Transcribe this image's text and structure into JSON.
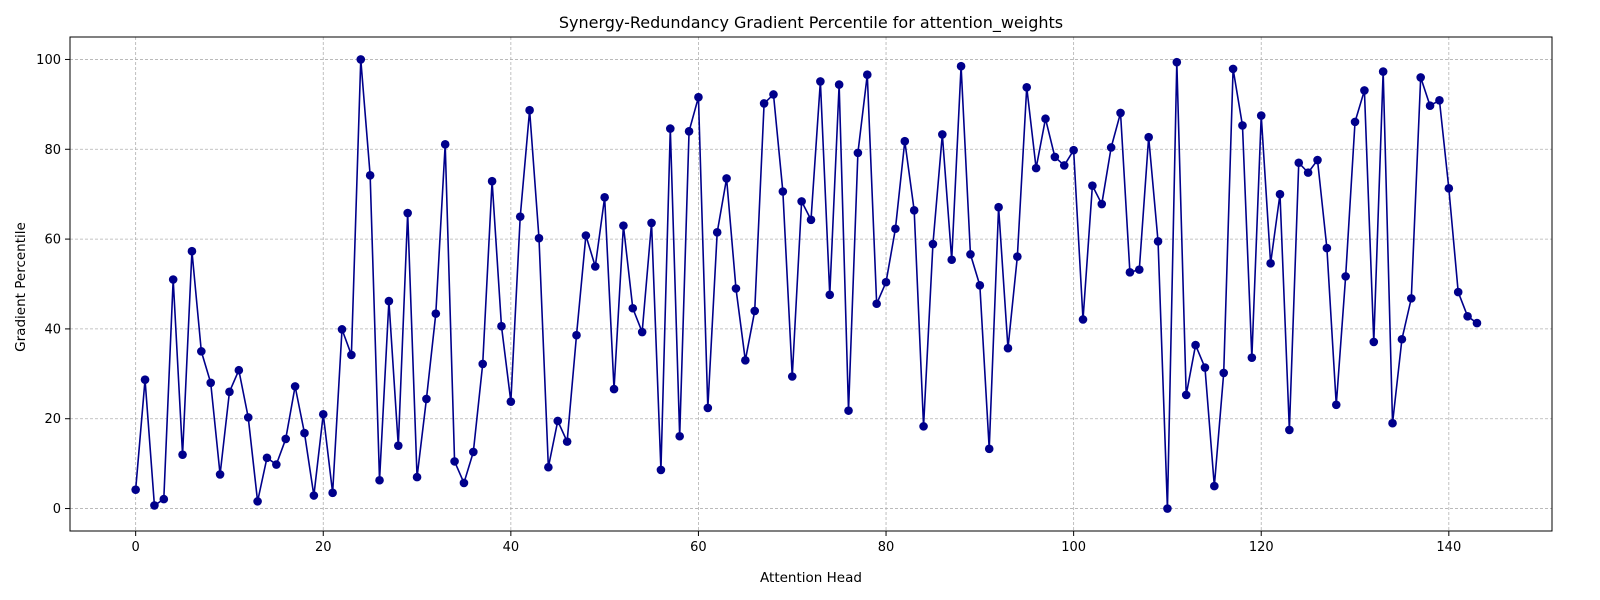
{
  "chart_data": {
    "type": "line",
    "title": "Synergy-Redundancy Gradient Percentile for attention_weights",
    "xlabel": "Attention Head",
    "ylabel": "Gradient Percentile",
    "xlim": [
      -7,
      151
    ],
    "ylim": [
      -5,
      105
    ],
    "xticks": [
      0,
      20,
      40,
      60,
      80,
      100,
      120,
      140
    ],
    "yticks": [
      0,
      20,
      40,
      60,
      80,
      100
    ],
    "grid": true,
    "marker": "circle",
    "series": [
      {
        "color": "#00008b",
        "x": [
          0,
          1,
          2,
          3,
          4,
          5,
          6,
          7,
          8,
          9,
          10,
          11,
          12,
          13,
          14,
          15,
          16,
          17,
          18,
          19,
          20,
          21,
          22,
          23,
          24,
          25,
          26,
          27,
          28,
          29,
          30,
          31,
          32,
          33,
          34,
          35,
          36,
          37,
          38,
          39,
          40,
          41,
          42,
          43,
          44,
          45,
          46,
          47,
          48,
          49,
          50,
          51,
          52,
          53,
          54,
          55,
          56,
          57,
          58,
          59,
          60,
          61,
          62,
          63,
          64,
          65,
          66,
          67,
          68,
          69,
          70,
          71,
          72,
          73,
          74,
          75,
          76,
          77,
          78,
          79,
          80,
          81,
          82,
          83,
          84,
          85,
          86,
          87,
          88,
          89,
          90,
          91,
          92,
          93,
          94,
          95,
          96,
          97,
          98,
          99,
          100,
          101,
          102,
          103,
          104,
          105,
          106,
          107,
          108,
          109,
          110,
          111,
          112,
          113,
          114,
          115,
          116,
          117,
          118,
          119,
          120,
          121,
          122,
          123,
          124,
          125,
          126,
          127,
          128,
          129,
          130,
          131,
          132,
          133,
          134,
          135,
          136,
          137,
          138,
          139,
          140,
          141,
          142,
          143
        ],
        "values": [
          4.2,
          28.7,
          0.7,
          2.1,
          51,
          12,
          57.3,
          35,
          28,
          7.6,
          26,
          30.8,
          20.3,
          1.6,
          11.3,
          9.8,
          15.5,
          27.2,
          16.8,
          2.9,
          21,
          3.5,
          39.9,
          34.2,
          100,
          74.2,
          6.3,
          46.2,
          14,
          65.8,
          7,
          24.4,
          43.4,
          81.1,
          10.5,
          5.7,
          12.6,
          32.2,
          72.9,
          40.6,
          23.8,
          65,
          88.7,
          60.2,
          9.2,
          19.5,
          14.9,
          38.6,
          60.8,
          53.9,
          69.3,
          26.6,
          63,
          44.6,
          39.3,
          63.6,
          8.6,
          84.6,
          16.1,
          84,
          91.6,
          22.4,
          61.5,
          73.5,
          49,
          33,
          44,
          90.2,
          92.2,
          70.6,
          29.4,
          68.4,
          64.3,
          95.1,
          47.6,
          94.4,
          21.8,
          79.2,
          96.6,
          45.6,
          50.4,
          62.3,
          81.8,
          66.4,
          18.3,
          58.9,
          83.3,
          55.4,
          98.5,
          56.6,
          49.7,
          13.3,
          67.1,
          35.7,
          56.1,
          93.8,
          75.8,
          86.8,
          78.3,
          76.4,
          79.8,
          42.1,
          71.9,
          67.8,
          80.4,
          88.1,
          52.6,
          53.2,
          82.7,
          59.5,
          0,
          99.4,
          25.3,
          36.4,
          31.4,
          5,
          30.2,
          97.9,
          85.3,
          33.6,
          87.5,
          54.6,
          70,
          17.5,
          77,
          74.8,
          77.6,
          58,
          23.1,
          51.7,
          86.1,
          93.1,
          37.1,
          97.3,
          19,
          37.7,
          46.8,
          96,
          89.7,
          90.9,
          71.3,
          48.2,
          42.8,
          41.3
        ]
      }
    ]
  }
}
